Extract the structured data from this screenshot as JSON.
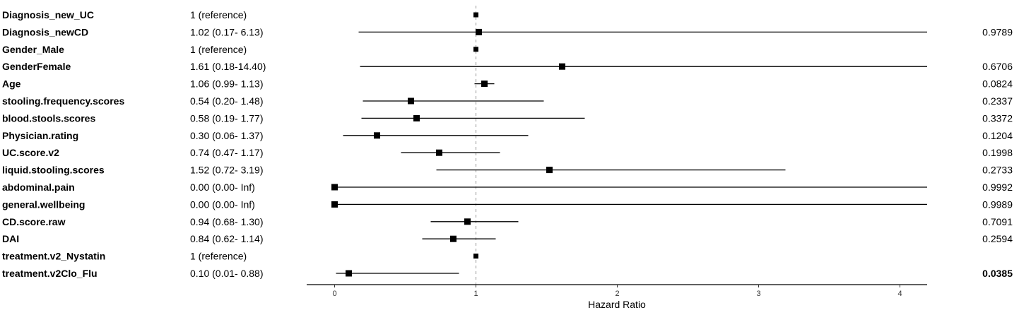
{
  "chart_data": {
    "type": "forest",
    "xlabel": "Hazard Ratio",
    "xlim": [
      -0.2,
      4.2
    ],
    "xticks": [
      0,
      1,
      2,
      3,
      4
    ],
    "reference_line": 1,
    "rows": [
      {
        "variable": "Diagnosis_new_UC",
        "label": "1 (reference)",
        "hr": 1,
        "lo": null,
        "hi": null,
        "p": "",
        "reference": true
      },
      {
        "variable": "Diagnosis_newCD",
        "label": "1.02 (0.17- 6.13)",
        "hr": 1.02,
        "lo": 0.17,
        "hi": 6.13,
        "p": "0.9789"
      },
      {
        "variable": "Gender_Male",
        "label": "1 (reference)",
        "hr": 1,
        "lo": null,
        "hi": null,
        "p": "",
        "reference": true
      },
      {
        "variable": "GenderFemale",
        "label": "1.61 (0.18-14.40)",
        "hr": 1.61,
        "lo": 0.18,
        "hi": 14.4,
        "p": "0.6706"
      },
      {
        "variable": "Age",
        "label": "1.06 (0.99- 1.13)",
        "hr": 1.06,
        "lo": 0.99,
        "hi": 1.13,
        "p": "0.0824"
      },
      {
        "variable": "stooling.frequency.scores",
        "label": "0.54 (0.20- 1.48)",
        "hr": 0.54,
        "lo": 0.2,
        "hi": 1.48,
        "p": "0.2337"
      },
      {
        "variable": "blood.stools.scores",
        "label": "0.58 (0.19- 1.77)",
        "hr": 0.58,
        "lo": 0.19,
        "hi": 1.77,
        "p": "0.3372"
      },
      {
        "variable": "Physician.rating",
        "label": "0.30 (0.06- 1.37)",
        "hr": 0.3,
        "lo": 0.06,
        "hi": 1.37,
        "p": "0.1204"
      },
      {
        "variable": "UC.score.v2",
        "label": "0.74 (0.47- 1.17)",
        "hr": 0.74,
        "lo": 0.47,
        "hi": 1.17,
        "p": "0.1998"
      },
      {
        "variable": "liquid.stooling.scores",
        "label": "1.52 (0.72- 3.19)",
        "hr": 1.52,
        "lo": 0.72,
        "hi": 3.19,
        "p": "0.2733"
      },
      {
        "variable": "abdominal.pain",
        "label": "0.00 (0.00-  Inf)",
        "hr": 0.0,
        "lo": 0.0,
        "hi": "Inf",
        "p": "0.9992"
      },
      {
        "variable": "general.wellbeing",
        "label": "0.00 (0.00-  Inf)",
        "hr": 0.0,
        "lo": 0.0,
        "hi": "Inf",
        "p": "0.9989"
      },
      {
        "variable": "CD.score.raw",
        "label": "0.94 (0.68- 1.30)",
        "hr": 0.94,
        "lo": 0.68,
        "hi": 1.3,
        "p": "0.7091"
      },
      {
        "variable": "DAI",
        "label": "0.84 (0.62- 1.14)",
        "hr": 0.84,
        "lo": 0.62,
        "hi": 1.14,
        "p": "0.2594"
      },
      {
        "variable": "treatment.v2_Nystatin",
        "label": "1 (reference)",
        "hr": 1,
        "lo": null,
        "hi": null,
        "p": "",
        "reference": true
      },
      {
        "variable": "treatment.v2Clo_Flu",
        "label": "0.10 (0.01- 0.88)",
        "hr": 0.1,
        "lo": 0.01,
        "hi": 0.88,
        "p": "0.0385",
        "significant": true
      }
    ]
  }
}
